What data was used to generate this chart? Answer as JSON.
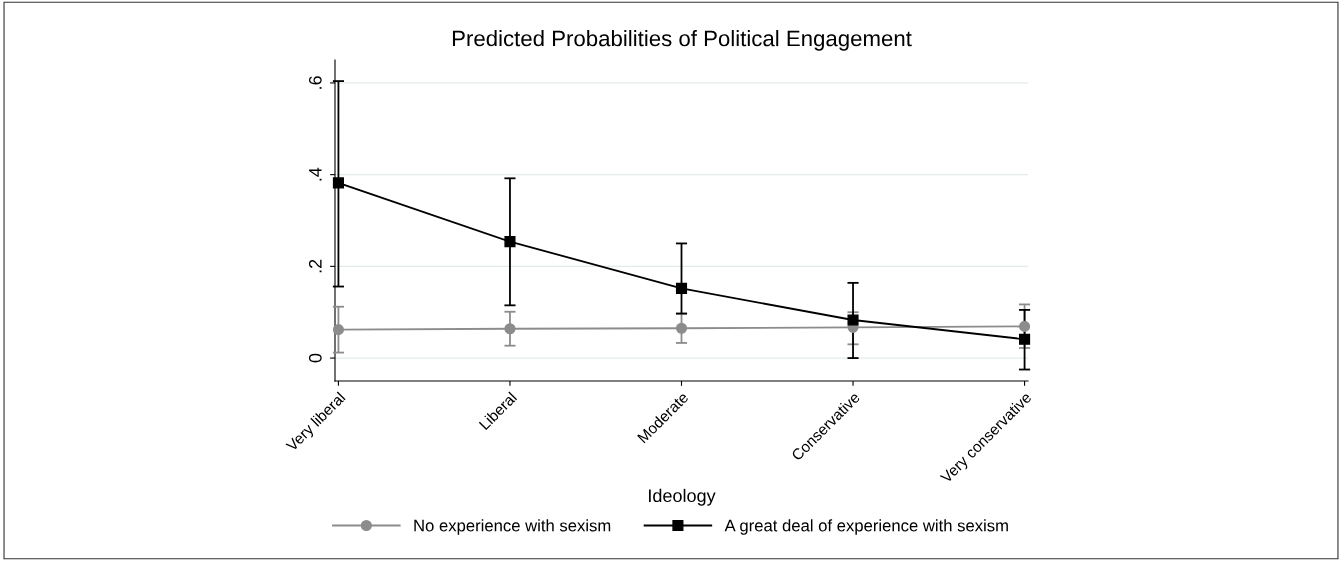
{
  "chart_data": {
    "type": "line",
    "title": "Predicted Probabilities of Political Engagement",
    "xlabel": "Ideology",
    "categories": [
      "Very liberal",
      "Liberal",
      "Moderate",
      "Conservative",
      "Very conservative"
    ],
    "series": [
      {
        "name": "No experience with sexism",
        "color": "#8c8c8c",
        "marker": "circle",
        "values": [
          0.062,
          0.064,
          0.065,
          0.067,
          0.069
        ],
        "errors": [
          [
            0.012,
            0.112
          ],
          [
            0.027,
            0.101
          ],
          [
            0.033,
            0.097
          ],
          [
            0.03,
            0.1
          ],
          [
            0.022,
            0.117
          ]
        ]
      },
      {
        "name": "A great deal of experience with sexism",
        "color": "#000000",
        "marker": "square",
        "values": [
          0.382,
          0.254,
          0.152,
          0.083,
          0.041
        ],
        "errors": [
          [
            0.156,
            0.604
          ],
          [
            0.115,
            0.392
          ],
          [
            0.097,
            0.25
          ],
          [
            0.0,
            0.164
          ],
          [
            -0.025,
            0.105
          ]
        ]
      }
    ],
    "ylim": [
      -0.05,
      0.65
    ],
    "yticks": [
      {
        "value": 0,
        "label": "0"
      },
      {
        "value": 0.2,
        "label": ".2"
      },
      {
        "value": 0.4,
        "label": ".4"
      },
      {
        "value": 0.6,
        "label": ".6"
      }
    ],
    "grid": "y",
    "legend": "bottom",
    "line_style": "solid"
  }
}
